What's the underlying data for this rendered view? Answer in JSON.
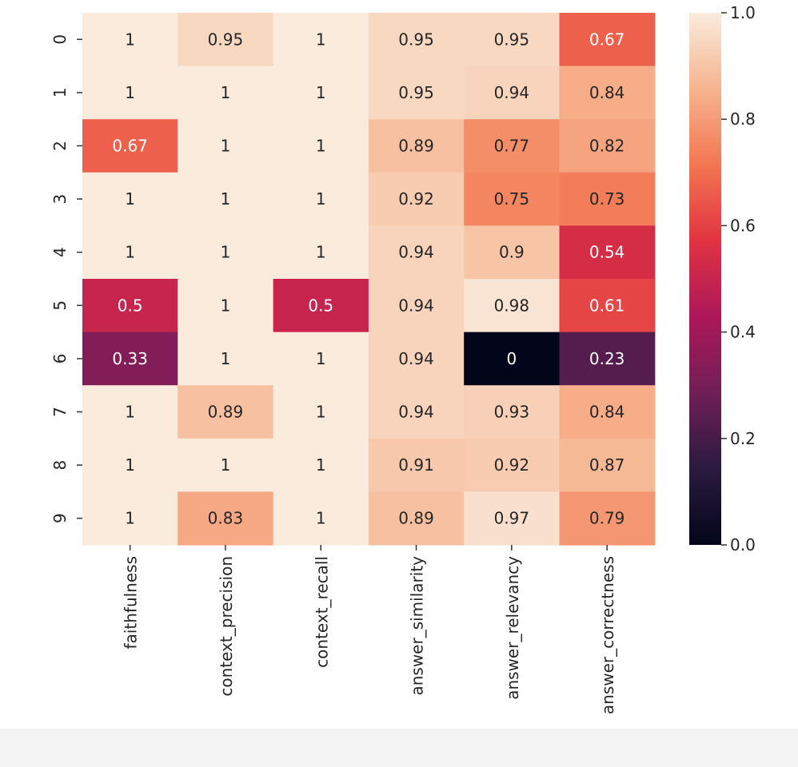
{
  "chart_data": {
    "type": "heatmap",
    "title": "",
    "xlabel": "",
    "ylabel": "",
    "rows": [
      "0",
      "1",
      "2",
      "3",
      "4",
      "5",
      "6",
      "7",
      "8",
      "9"
    ],
    "columns": [
      "faithfulness",
      "context_precision",
      "context_recall",
      "answer_similarity",
      "answer_relevancy",
      "answer_correctness"
    ],
    "values": [
      [
        1,
        0.95,
        1,
        0.95,
        0.95,
        0.67
      ],
      [
        1,
        1,
        1,
        0.95,
        0.94,
        0.84
      ],
      [
        0.67,
        1,
        1,
        0.89,
        0.77,
        0.82
      ],
      [
        1,
        1,
        1,
        0.92,
        0.75,
        0.73
      ],
      [
        1,
        1,
        1,
        0.94,
        0.9,
        0.54
      ],
      [
        0.5,
        1,
        0.5,
        0.94,
        0.98,
        0.61
      ],
      [
        0.33,
        1,
        1,
        0.94,
        0,
        0.23
      ],
      [
        1,
        0.89,
        1,
        0.94,
        0.93,
        0.84
      ],
      [
        1,
        1,
        1,
        0.91,
        0.92,
        0.87
      ],
      [
        1,
        0.83,
        1,
        0.89,
        0.97,
        0.79
      ]
    ],
    "annotations": [
      [
        "1",
        "0.95",
        "1",
        "0.95",
        "0.95",
        "0.67"
      ],
      [
        "1",
        "1",
        "1",
        "0.95",
        "0.94",
        "0.84"
      ],
      [
        "0.67",
        "1",
        "1",
        "0.89",
        "0.77",
        "0.82"
      ],
      [
        "1",
        "1",
        "1",
        "0.92",
        "0.75",
        "0.73"
      ],
      [
        "1",
        "1",
        "1",
        "0.94",
        "0.9",
        "0.54"
      ],
      [
        "0.5",
        "1",
        "0.5",
        "0.94",
        "0.98",
        "0.61"
      ],
      [
        "0.33",
        "1",
        "1",
        "0.94",
        "0",
        "0.23"
      ],
      [
        "1",
        "0.89",
        "1",
        "0.94",
        "0.93",
        "0.84"
      ],
      [
        "1",
        "1",
        "1",
        "0.91",
        "0.92",
        "0.87"
      ],
      [
        "1",
        "0.83",
        "1",
        "0.89",
        "0.97",
        "0.79"
      ]
    ],
    "colorbar": {
      "range": [
        0,
        1
      ],
      "ticks": [
        0,
        0.2,
        0.4,
        0.6,
        0.8,
        1
      ],
      "tick_labels": [
        "0.0",
        "0.2",
        "0.4",
        "0.6",
        "0.8",
        "1.0"
      ],
      "colormap": "rocket",
      "colors": [
        "#03051a",
        "#2a1a3f",
        "#701f57",
        "#ad1759",
        "#e13342",
        "#f37651",
        "#f6b48f",
        "#faebdd"
      ],
      "position": "right"
    },
    "grid": false
  }
}
